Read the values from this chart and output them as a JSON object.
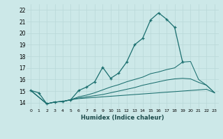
{
  "xlabel": "Humidex (Indice chaleur)",
  "background_color": "#cce8e8",
  "grid_color": "#b8d8d8",
  "line_color": "#1a6e6e",
  "xlim": [
    -0.5,
    23.5
  ],
  "ylim": [
    13.5,
    22.5
  ],
  "xticks": [
    0,
    1,
    2,
    3,
    4,
    5,
    6,
    7,
    8,
    9,
    10,
    11,
    12,
    13,
    14,
    15,
    16,
    17,
    18,
    19,
    20,
    21,
    22,
    23
  ],
  "yticks": [
    14,
    15,
    16,
    17,
    18,
    19,
    20,
    21,
    22
  ],
  "series": [
    {
      "x": [
        0,
        1,
        2,
        3,
        4,
        5,
        6,
        7,
        8,
        9,
        10,
        11,
        12,
        13,
        14,
        15,
        16,
        17,
        18,
        19,
        20,
        21,
        22,
        23
      ],
      "y": [
        15.05,
        14.85,
        13.9,
        14.05,
        14.1,
        14.25,
        15.05,
        15.35,
        15.8,
        17.05,
        16.1,
        16.55,
        17.5,
        19.0,
        19.55,
        21.15,
        21.75,
        21.2,
        20.5,
        17.5,
        null,
        null,
        null,
        null
      ],
      "marker": true,
      "markersize": 3
    },
    {
      "x": [
        0,
        2,
        3,
        4,
        5,
        6,
        7,
        8,
        9,
        10,
        11,
        12,
        13,
        14,
        15,
        16,
        17,
        18,
        19,
        20,
        21,
        22,
        23
      ],
      "y": [
        15.05,
        13.9,
        14.05,
        14.1,
        14.25,
        14.35,
        14.4,
        14.45,
        14.5,
        14.55,
        14.6,
        14.65,
        14.7,
        14.75,
        14.8,
        14.85,
        14.9,
        14.95,
        15.0,
        15.05,
        15.1,
        15.15,
        14.85
      ],
      "marker": false
    },
    {
      "x": [
        0,
        2,
        3,
        4,
        5,
        6,
        7,
        8,
        9,
        10,
        11,
        12,
        13,
        14,
        15,
        16,
        17,
        18,
        19,
        20,
        21,
        22,
        23
      ],
      "y": [
        15.05,
        13.9,
        14.05,
        14.1,
        14.25,
        14.4,
        14.5,
        14.6,
        14.7,
        14.85,
        15.0,
        15.15,
        15.3,
        15.5,
        15.65,
        15.8,
        15.95,
        16.05,
        16.1,
        16.05,
        15.75,
        15.5,
        14.85
      ],
      "marker": false
    },
    {
      "x": [
        0,
        2,
        3,
        4,
        5,
        6,
        7,
        8,
        9,
        10,
        11,
        12,
        13,
        14,
        15,
        16,
        17,
        18,
        19,
        20,
        21,
        22,
        23
      ],
      "y": [
        15.05,
        13.9,
        14.05,
        14.1,
        14.25,
        14.5,
        14.65,
        14.85,
        15.1,
        15.35,
        15.55,
        15.8,
        16.0,
        16.2,
        16.5,
        16.65,
        16.85,
        17.0,
        17.5,
        17.55,
        16.0,
        15.5,
        14.85
      ],
      "marker": false
    }
  ]
}
